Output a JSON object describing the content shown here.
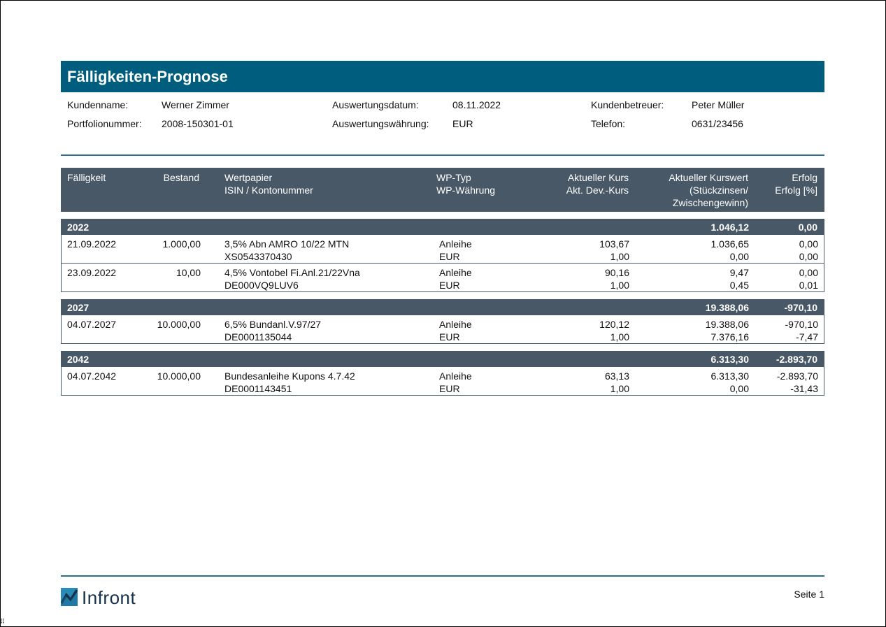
{
  "title": "Fälligkeiten-Prognose",
  "meta": {
    "kundenname_label": "Kundenname:",
    "kundenname": "Werner Zimmer",
    "portfolionummer_label": "Portfolionummer:",
    "portfolionummer": "2008-150301-01",
    "auswertungsdatum_label": "Auswertungsdatum:",
    "auswertungsdatum": "08.11.2022",
    "auswertungswaehrung_label": "Auswertungswährung:",
    "auswertungswaehrung": "EUR",
    "kundenbetreuer_label": "Kundenbetreuer:",
    "kundenbetreuer": "Peter Müller",
    "telefon_label": "Telefon:",
    "telefon": "0631/23456"
  },
  "columns": {
    "faelligkeit": "Fälligkeit",
    "bestand": "Bestand",
    "wertpapier_1": "Wertpapier",
    "wertpapier_2": "ISIN / Kontonummer",
    "wptyp_1": "WP-Typ",
    "wptyp_2": "WP-Währung",
    "kurs_1": "Aktueller Kurs",
    "kurs_2": "Akt. Dev.-Kurs",
    "kurswert_1": "Aktueller Kurswert",
    "kurswert_2": "(Stückzinsen/",
    "kurswert_3": "Zwischengewinn)",
    "erfolg_1": "Erfolg",
    "erfolg_2": "Erfolg [%]"
  },
  "groups": [
    {
      "year": "2022",
      "total_kurswert": "1.046,12",
      "total_erfolg": "0,00",
      "rows": [
        {
          "faelligkeit": "21.09.2022",
          "bestand": "1.000,00",
          "wertpapier": "3,5% Abn AMRO 10/22 MTN",
          "isin": "XS0543370430",
          "typ": "Anleihe",
          "waehrung": "EUR",
          "kurs": "103,67",
          "devkurs": "1,00",
          "kurswert": "1.036,65",
          "stueckzinsen": "0,00",
          "erfolg": "0,00",
          "erfolg_pct": "0,00"
        },
        {
          "faelligkeit": "23.09.2022",
          "bestand": "10,00",
          "wertpapier": "4,5% Vontobel Fi.Anl.21/22Vna",
          "isin": "DE000VQ9LUV6",
          "typ": "Anleihe",
          "waehrung": "EUR",
          "kurs": "90,16",
          "devkurs": "1,00",
          "kurswert": "9,47",
          "stueckzinsen": "0,45",
          "erfolg": "0,00",
          "erfolg_pct": "0,01"
        }
      ]
    },
    {
      "year": "2027",
      "total_kurswert": "19.388,06",
      "total_erfolg": "-970,10",
      "rows": [
        {
          "faelligkeit": "04.07.2027",
          "bestand": "10.000,00",
          "wertpapier": "6,5% Bundanl.V.97/27",
          "isin": "DE0001135044",
          "typ": "Anleihe",
          "waehrung": "EUR",
          "kurs": "120,12",
          "devkurs": "1,00",
          "kurswert": "19.388,06",
          "stueckzinsen": "7.376,16",
          "erfolg": "-970,10",
          "erfolg_pct": "-7,47"
        }
      ]
    },
    {
      "year": "2042",
      "total_kurswert": "6.313,30",
      "total_erfolg": "-2.893,70",
      "rows": [
        {
          "faelligkeit": "04.07.2042",
          "bestand": "10.000,00",
          "wertpapier": "Bundesanleihe Kupons 4.7.42",
          "isin": "DE0001143451",
          "typ": "Anleihe",
          "waehrung": "EUR",
          "kurs": "63,13",
          "devkurs": "1,00",
          "kurswert": "6.313,30",
          "stueckzinsen": "0,00",
          "erfolg": "-2.893,70",
          "erfolg_pct": "-31,43"
        }
      ]
    }
  ],
  "footer": {
    "logo_text": "Infront",
    "page": "Seite 1"
  },
  "colors": {
    "title_bar": "#005d7d",
    "header_bar": "#495867",
    "rule": "#2f6f8e"
  }
}
